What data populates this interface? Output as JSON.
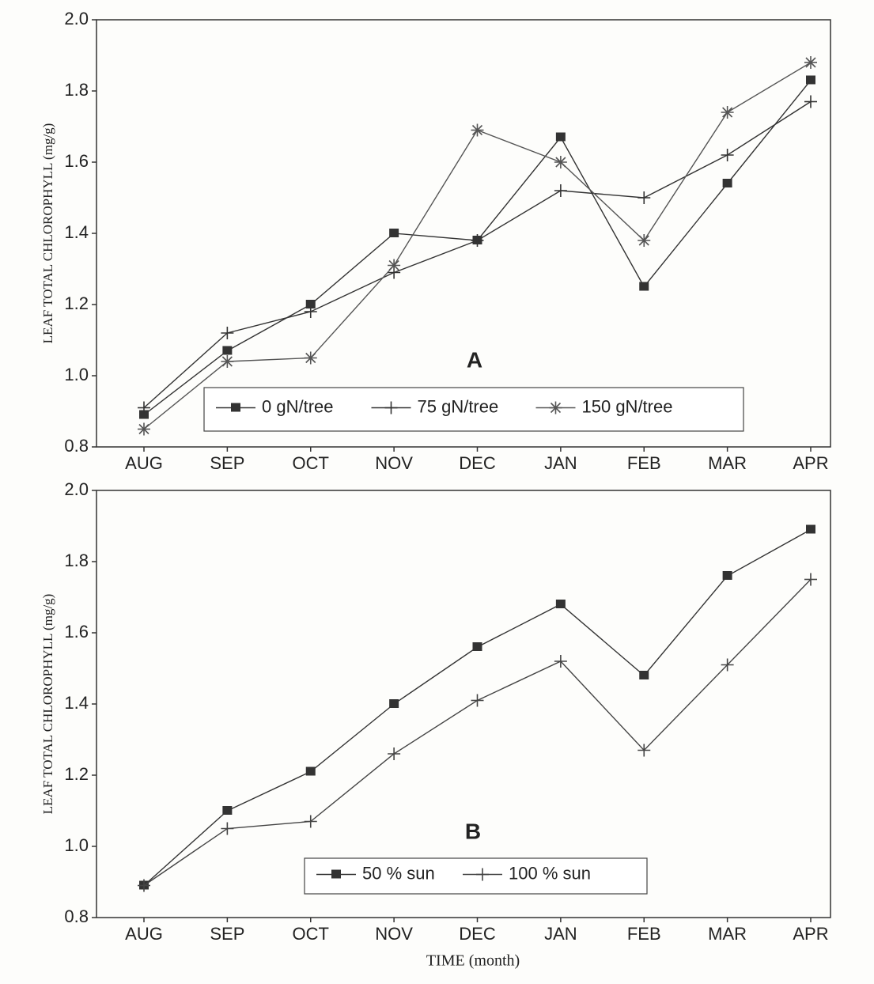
{
  "chart_data": [
    {
      "type": "line",
      "title": "A",
      "ylabel": "LEAF TOTAL CHLOROPHYLL (mg/g)",
      "categories": [
        "AUG",
        "SEP",
        "OCT",
        "NOV",
        "DEC",
        "JAN",
        "FEB",
        "MAR",
        "APR"
      ],
      "ylim": [
        0.8,
        2.0
      ],
      "yticks": [
        0.8,
        {
          "value": 1.0,
          "label": "1.0"
        },
        1.2,
        1.4,
        1.6,
        1.8,
        {
          "value": 2.0,
          "label": "2.0"
        }
      ],
      "series": [
        {
          "name": "0 gN/tree",
          "color": "#333333",
          "marker": "square",
          "values": [
            0.89,
            1.07,
            1.2,
            1.4,
            1.38,
            1.67,
            1.25,
            1.54,
            1.83
          ]
        },
        {
          "name": "75 gN/tree",
          "color": "#333333",
          "marker": "plus",
          "values": [
            0.91,
            1.12,
            1.18,
            1.29,
            1.38,
            1.52,
            1.5,
            1.62,
            1.77
          ]
        },
        {
          "name": "150 gN/tree",
          "color": "#555555",
          "marker": "star",
          "values": [
            0.85,
            1.04,
            1.05,
            1.31,
            1.69,
            1.6,
            1.38,
            1.74,
            1.88
          ]
        }
      ]
    },
    {
      "type": "line",
      "title": "B",
      "ylabel": "LEAF TOTAL CHLOROPHYLL (mg/g)",
      "xlabel": "TIME (month)",
      "categories": [
        "AUG",
        "SEP",
        "OCT",
        "NOV",
        "DEC",
        "JAN",
        "FEB",
        "MAR",
        "APR"
      ],
      "ylim": [
        0.8,
        2.0
      ],
      "yticks": [
        0.8,
        {
          "value": 1.0,
          "label": "1.0"
        },
        1.2,
        1.4,
        1.6,
        1.8,
        {
          "value": 2.0,
          "label": "2.0"
        }
      ],
      "series": [
        {
          "name": "50 % sun",
          "color": "#333333",
          "marker": "square",
          "values": [
            0.89,
            1.1,
            1.21,
            1.4,
            1.56,
            1.68,
            1.48,
            1.76,
            1.89
          ]
        },
        {
          "name": "100 % sun",
          "color": "#444444",
          "marker": "plus",
          "values": [
            0.89,
            1.05,
            1.07,
            1.26,
            1.41,
            1.52,
            1.27,
            1.51,
            1.75
          ]
        }
      ]
    }
  ]
}
